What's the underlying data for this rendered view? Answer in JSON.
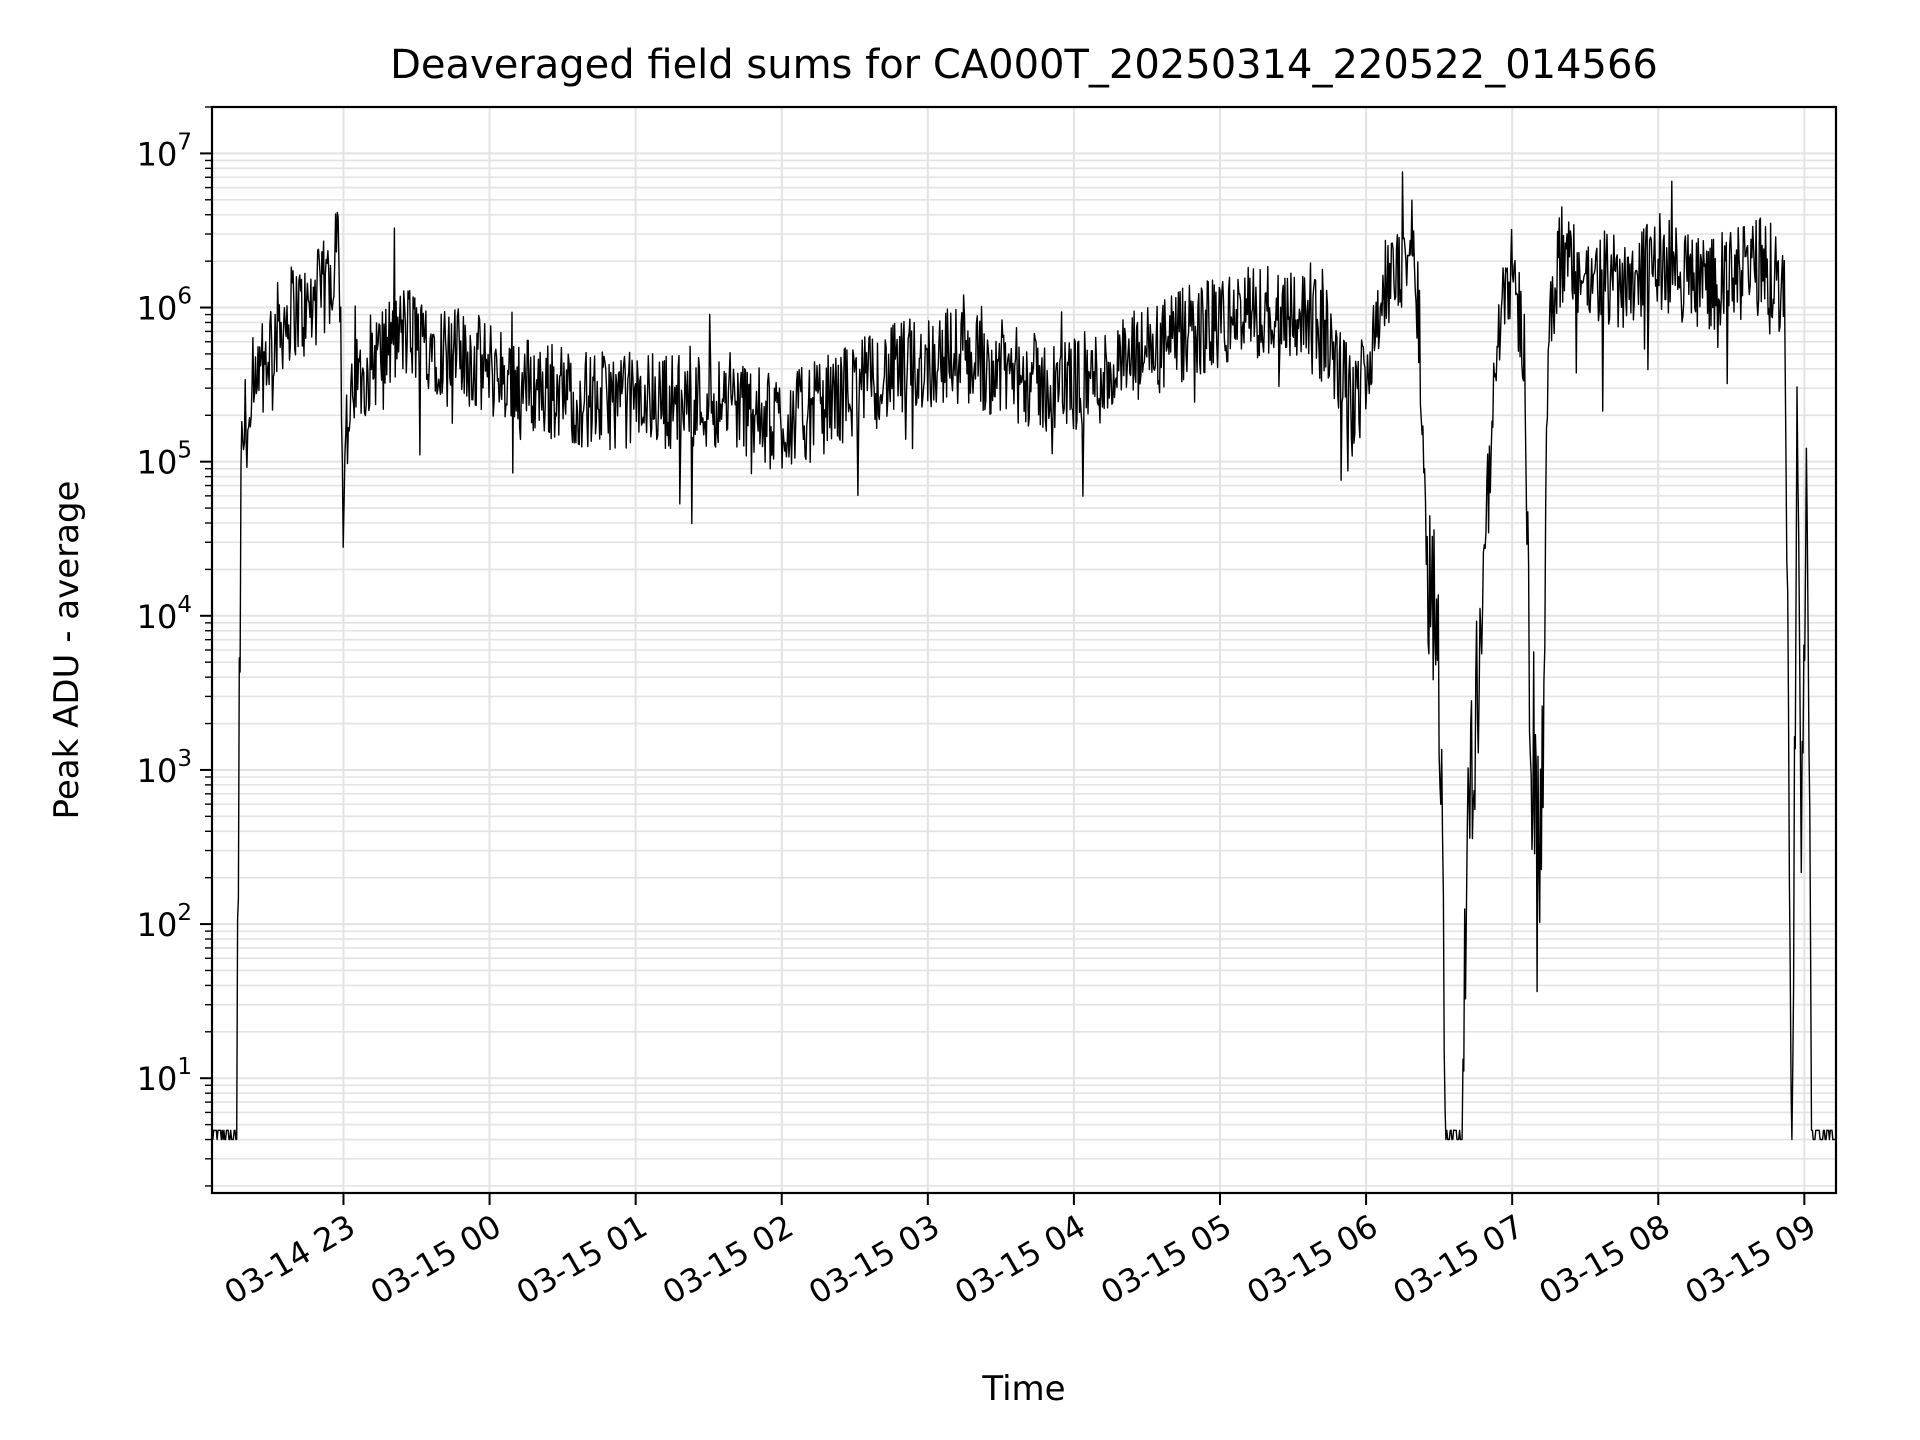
{
  "chart_data": {
    "type": "line",
    "title": "Deaveraged field sums for CA000T_20250314_220522_014566",
    "xlabel": "Time",
    "ylabel": "Peak ADU - average",
    "yscale": "log",
    "grid": true,
    "line_color": "#000000",
    "grid_color": "#e3e3e3",
    "xlim": [
      "03-14 22:06",
      "03-15 09:13"
    ],
    "ylim": [
      1.8,
      20000000
    ],
    "x_ticks": [
      {
        "time": "03-14 23:00",
        "label": "03-14 23"
      },
      {
        "time": "03-15 00:00",
        "label": "03-15 00"
      },
      {
        "time": "03-15 01:00",
        "label": "03-15 01"
      },
      {
        "time": "03-15 02:00",
        "label": "03-15 02"
      },
      {
        "time": "03-15 03:00",
        "label": "03-15 03"
      },
      {
        "time": "03-15 04:00",
        "label": "03-15 04"
      },
      {
        "time": "03-15 05:00",
        "label": "03-15 05"
      },
      {
        "time": "03-15 06:00",
        "label": "03-15 06"
      },
      {
        "time": "03-15 07:00",
        "label": "03-15 07"
      },
      {
        "time": "03-15 08:00",
        "label": "03-15 08"
      },
      {
        "time": "03-15 09:00",
        "label": "03-15 09"
      }
    ],
    "y_ticks": [
      {
        "value": 10,
        "base": "10",
        "exp": "1"
      },
      {
        "value": 100,
        "base": "10",
        "exp": "2"
      },
      {
        "value": 1000,
        "base": "10",
        "exp": "3"
      },
      {
        "value": 10000,
        "base": "10",
        "exp": "4"
      },
      {
        "value": 100000,
        "base": "10",
        "exp": "5"
      },
      {
        "value": 1000000,
        "base": "10",
        "exp": "6"
      },
      {
        "value": 10000000,
        "base": "10",
        "exp": "7"
      }
    ],
    "series": [
      {
        "x": [
          "03-14 22:06",
          "03-14 22:16",
          "03-14 22:17",
          "03-14 22:18",
          "03-14 22:20",
          "03-14 22:22",
          "03-14 22:25",
          "03-14 22:30",
          "03-14 22:35",
          "03-14 22:40",
          "03-14 22:45",
          "03-14 22:50",
          "03-14 22:55",
          "03-14 22:58",
          "03-14 23:00",
          "03-14 23:01",
          "03-14 23:03",
          "03-14 23:05",
          "03-14 23:08",
          "03-14 23:15",
          "03-14 23:25",
          "03-14 23:35",
          "03-14 23:45",
          "03-15 00:00",
          "03-15 00:20",
          "03-15 00:40",
          "03-15 01:00",
          "03-15 01:20",
          "03-15 01:40",
          "03-15 01:55",
          "03-15 02:10",
          "03-15 02:30",
          "03-15 02:50",
          "03-15 03:10",
          "03-15 03:30",
          "03-15 03:50",
          "03-15 04:10",
          "03-15 04:30",
          "03-15 04:50",
          "03-15 05:10",
          "03-15 05:30",
          "03-15 05:45",
          "03-15 05:55",
          "03-15 06:05",
          "03-15 06:15",
          "03-15 06:20",
          "03-15 06:25",
          "03-15 06:30",
          "03-15 06:33",
          "03-15 06:36",
          "03-15 06:39",
          "03-15 06:42",
          "03-15 06:45",
          "03-15 06:48",
          "03-15 06:51",
          "03-15 06:55",
          "03-15 07:00",
          "03-15 07:05",
          "03-15 07:08",
          "03-15 07:12",
          "03-15 07:15",
          "03-15 07:20",
          "03-15 07:30",
          "03-15 07:45",
          "03-15 08:00",
          "03-15 08:15",
          "03-15 08:30",
          "03-15 08:45",
          "03-15 08:52",
          "03-15 08:55",
          "03-15 08:57",
          "03-15 08:59",
          "03-15 09:01",
          "03-15 09:03",
          "03-15 09:13"
        ],
        "values": [
          4,
          4,
          500,
          100000,
          200000,
          150000,
          300000,
          600000,
          800000,
          1000000,
          900000,
          1200000,
          1500000,
          5000000,
          40000,
          150000,
          200000,
          300000,
          400000,
          500000,
          700000,
          600000,
          500000,
          400000,
          300000,
          250000,
          250000,
          250000,
          250000,
          180000,
          200000,
          300000,
          400000,
          500000,
          400000,
          300000,
          350000,
          500000,
          700000,
          900000,
          1000000,
          600000,
          200000,
          1000000,
          2000000,
          3000000,
          30000,
          5000,
          4,
          4,
          4,
          500,
          2000,
          20000,
          100000,
          1000000,
          2000000,
          500000,
          1000,
          300,
          1000000,
          2000000,
          1500000,
          1500000,
          2000000,
          1500000,
          1500000,
          2000000,
          1000000,
          5,
          200000,
          300,
          100000,
          4,
          4
        ]
      }
    ]
  }
}
